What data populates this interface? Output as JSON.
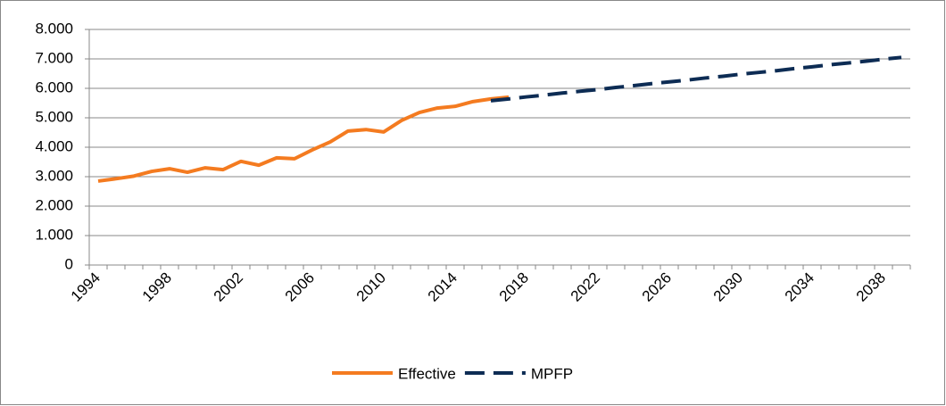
{
  "chart_data": {
    "type": "line",
    "categories": [
      "1994",
      null,
      null,
      null,
      "1998",
      null,
      null,
      null,
      "2002",
      null,
      null,
      null,
      "2006",
      null,
      null,
      null,
      "2010",
      null,
      null,
      null,
      "2014",
      null,
      null,
      null,
      "2018",
      null,
      null,
      null,
      "2022",
      null,
      null,
      null,
      "2026",
      null,
      null,
      null,
      "2030",
      null,
      null,
      null,
      "2034",
      null,
      null,
      null,
      "2038",
      null
    ],
    "series": [
      {
        "name": "Effective",
        "color": "#f47b20",
        "dashed": false,
        "values": [
          2.85,
          2.93,
          3.02,
          3.18,
          3.27,
          3.15,
          3.3,
          3.24,
          3.52,
          3.39,
          3.64,
          3.61,
          3.91,
          4.18,
          4.55,
          4.6,
          4.52,
          4.91,
          5.18,
          5.33,
          5.39,
          5.55,
          5.64,
          5.7,
          null,
          null,
          null,
          null,
          null,
          null,
          null,
          null,
          null,
          null,
          null,
          null,
          null,
          null,
          null,
          null,
          null,
          null,
          null,
          null,
          null,
          null
        ]
      },
      {
        "name": "MPFP",
        "color": "#0d2c54",
        "dashed": true,
        "values": [
          null,
          null,
          null,
          null,
          null,
          null,
          null,
          null,
          null,
          null,
          null,
          null,
          null,
          null,
          null,
          null,
          null,
          null,
          null,
          null,
          null,
          null,
          5.58,
          5.64,
          5.71,
          5.77,
          5.84,
          5.9,
          5.96,
          6.03,
          6.09,
          6.16,
          6.22,
          6.28,
          6.35,
          6.41,
          6.48,
          6.54,
          6.6,
          6.67,
          6.73,
          6.8,
          6.86,
          6.92,
          6.99,
          7.05
        ]
      }
    ],
    "ylim": [
      0,
      8
    ],
    "yticks": [
      0,
      {
        "value": 1,
        "label": "1.000"
      },
      {
        "value": 2,
        "label": "2.000"
      },
      {
        "value": 3,
        "label": "3.000"
      },
      {
        "value": 4,
        "label": "4.000"
      },
      {
        "value": 5,
        "label": "5.000"
      },
      {
        "value": 6,
        "label": "6.000"
      },
      {
        "value": 7,
        "label": "7.000"
      },
      {
        "value": 8,
        "label": "8.000"
      }
    ],
    "grid": true,
    "legend": "bottom"
  }
}
